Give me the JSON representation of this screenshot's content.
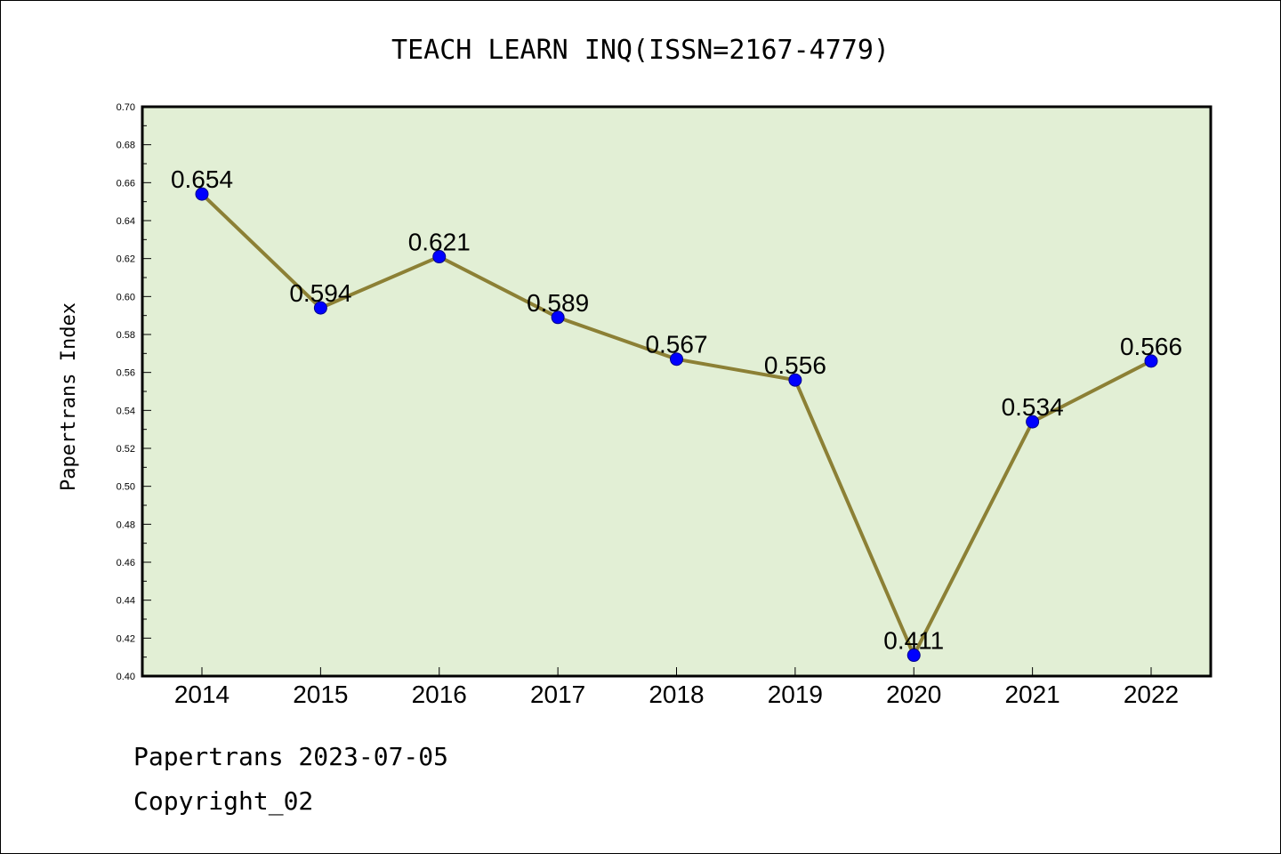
{
  "chart_data": {
    "type": "line",
    "title": "TEACH LEARN INQ(ISSN=2167-4779)",
    "xlabel": "",
    "ylabel": "Papertrans Index",
    "categories": [
      "2014",
      "2015",
      "2016",
      "2017",
      "2018",
      "2019",
      "2020",
      "2021",
      "2022"
    ],
    "series": [
      {
        "values": [
          0.654,
          0.594,
          0.621,
          0.589,
          0.567,
          0.556,
          0.411,
          0.534,
          0.566
        ],
        "labels": [
          "0.654",
          "0.594",
          "0.621",
          "0.589",
          "0.567",
          "0.556",
          "0.411",
          "0.534",
          "0.566"
        ]
      }
    ],
    "ylim": [
      0.4,
      0.7
    ],
    "yticks": [
      "0.40",
      "0.42",
      "0.44",
      "0.46",
      "0.48",
      "0.50",
      "0.52",
      "0.54",
      "0.56",
      "0.58",
      "0.60",
      "0.62",
      "0.64",
      "0.66",
      "0.68",
      "0.70"
    ],
    "grid": false,
    "colors": {
      "plot_background": "#e2efd5",
      "line": "#8c8035",
      "marker": "#0000ff"
    }
  },
  "footer": {
    "line1": "Papertrans 2023-07-05",
    "line2": "Copyright_02"
  }
}
